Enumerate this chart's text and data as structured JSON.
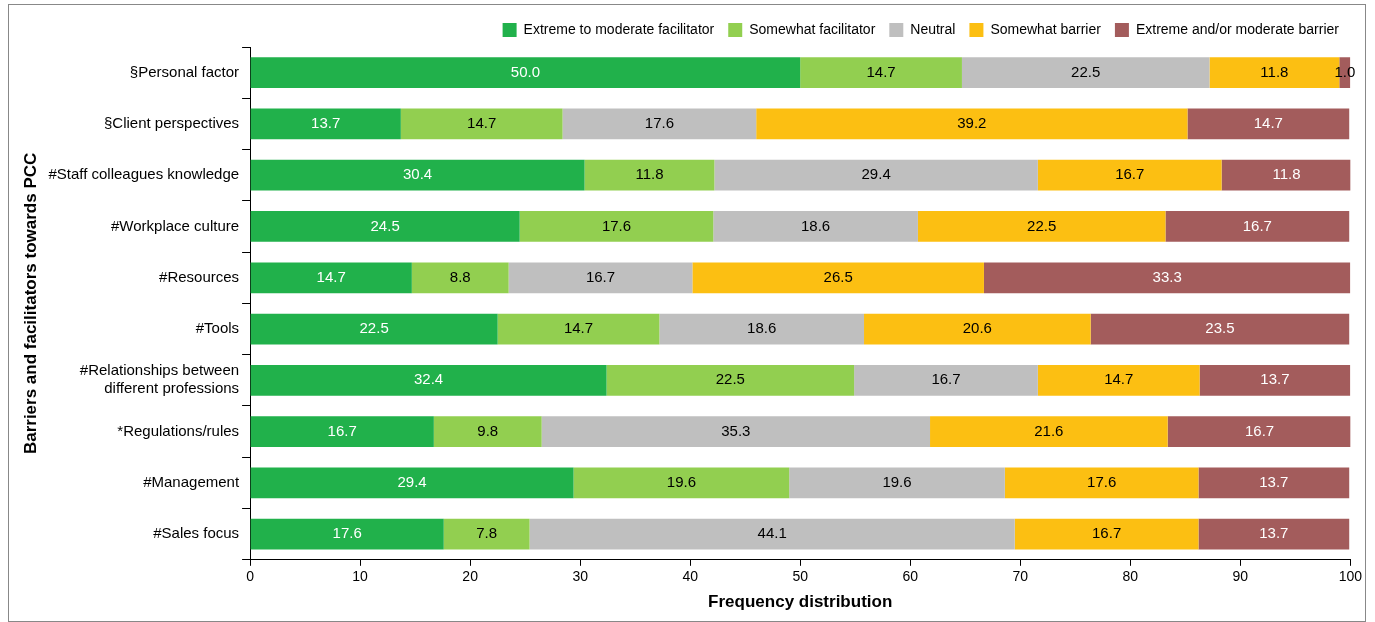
{
  "chart_data": {
    "type": "bar",
    "orientation": "horizontal",
    "stacked": true,
    "xlabel": "Frequency distribution",
    "ylabel": "Barriers and facilitators towards PCC",
    "categories": [
      "§Personal factor",
      "§Client perspectives",
      "#Staff colleagues knowledge",
      "#Workplace culture",
      "#Resources",
      "#Tools",
      "#Relationships between different professions",
      "*Regulations/rules",
      "#Management",
      "#Sales focus"
    ],
    "series": [
      {
        "name": "Extreme to moderate facilitator",
        "color": "#21b14b",
        "values": [
          50.0,
          13.7,
          30.4,
          24.5,
          14.7,
          22.5,
          32.4,
          16.7,
          29.4,
          17.6
        ],
        "value_labels": [
          "50.0",
          "13.7",
          "30.4",
          "24.5",
          "14.7",
          "22.5",
          "32.4",
          "16.7",
          "29.4",
          "17.6"
        ]
      },
      {
        "name": "Somewhat facilitator",
        "color": "#92cf50",
        "values": [
          14.7,
          14.7,
          11.8,
          17.6,
          8.8,
          14.7,
          22.5,
          9.8,
          19.6,
          7.8
        ],
        "value_labels": [
          "14.7",
          "14.7",
          "11.8",
          "17.6",
          "8.8",
          "14.7",
          "22.5",
          "9.8",
          "19.6",
          "7.8"
        ]
      },
      {
        "name": "Neutral",
        "color": "#bfbfbf",
        "values": [
          22.5,
          17.6,
          29.4,
          18.6,
          16.7,
          18.6,
          16.7,
          35.3,
          19.6,
          44.1
        ],
        "value_labels": [
          "22.5",
          "17.6",
          "29.4",
          "18.6",
          "16.7",
          "18.6",
          "16.7",
          "35.3",
          "19.6",
          "44.1"
        ]
      },
      {
        "name": "Somewhat barrier",
        "color": "#fcbf12",
        "values": [
          11.8,
          39.2,
          16.7,
          22.5,
          26.5,
          20.6,
          14.7,
          21.6,
          17.6,
          16.7
        ],
        "value_labels": [
          "11.8",
          "39.2",
          "16.7",
          "22.5",
          "26.5",
          "20.6",
          "14.7",
          "21.6",
          "17.6",
          "16.7"
        ]
      },
      {
        "name": "Extreme and/or moderate barrier",
        "color": "#a35c5c",
        "values": [
          1.0,
          14.7,
          11.8,
          16.7,
          33.3,
          23.5,
          13.7,
          16.7,
          13.7,
          13.7
        ],
        "value_labels": [
          "1.0",
          "14.7",
          "11.8",
          "16.7",
          "33.3",
          "23.5",
          "13.7",
          "16.7",
          "13.7",
          "13.7"
        ]
      }
    ],
    "xlim": [
      0,
      100
    ],
    "xticks": [
      0,
      10,
      20,
      30,
      40,
      50,
      60,
      70,
      80,
      90,
      100
    ],
    "grid": false,
    "legend": "top right"
  }
}
